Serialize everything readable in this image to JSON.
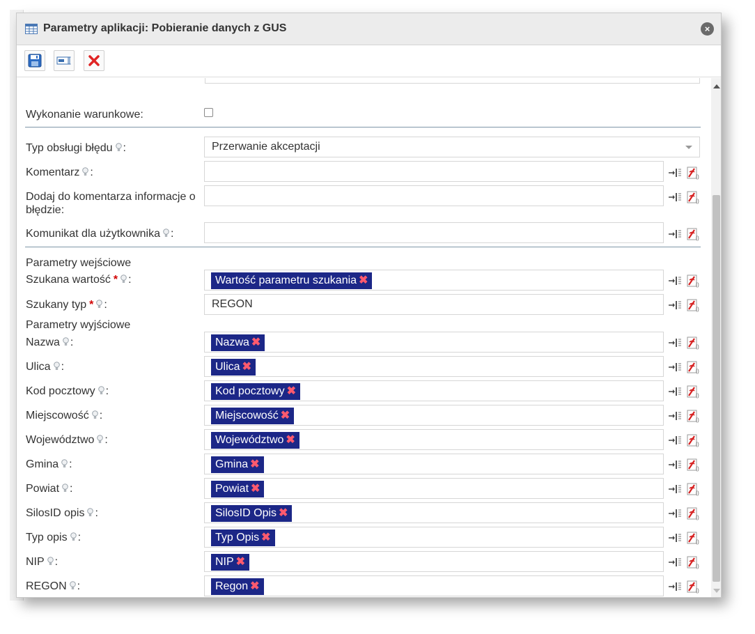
{
  "dialog": {
    "title": "Parametry aplikacji: Pobieranie danych z GUS"
  },
  "toolbar": {
    "buttons": [
      "save-icon",
      "field-icon",
      "delete-icon"
    ]
  },
  "form": {
    "conditional_label": "Wykonanie warunkowe:",
    "conditional_checked": false,
    "error_type_label": "Typ obsługi błędu",
    "error_type_value": "Przerwanie akceptacji",
    "comment_label": "Komentarz",
    "add_error_info_label": "Dodaj do komentarza informacje o błędzie:",
    "user_message_label": "Komunikat dla użytkownika",
    "input_params_header": "Parametry wejściowe",
    "search_value_label": "Szukana wartość",
    "search_value_tag": "Wartość parametru szukania",
    "search_type_label": "Szukany typ",
    "search_type_value": "REGON",
    "output_params_header": "Parametry wyjściowe",
    "outputs": [
      {
        "label": "Nazwa",
        "tag": "Nazwa"
      },
      {
        "label": "Ulica",
        "tag": "Ulica"
      },
      {
        "label": "Kod pocztowy",
        "tag": "Kod pocztowy"
      },
      {
        "label": "Miejscowość",
        "tag": "Miejscowość"
      },
      {
        "label": "Województwo",
        "tag": "Województwo"
      },
      {
        "label": "Gmina",
        "tag": "Gmina"
      },
      {
        "label": "Powiat",
        "tag": "Powiat"
      },
      {
        "label": "SilosID opis",
        "tag": "SilosID Opis"
      },
      {
        "label": "Typ opis",
        "tag": "Typ Opis"
      },
      {
        "label": "NIP",
        "tag": "NIP"
      },
      {
        "label": "REGON",
        "tag": "Regon"
      }
    ],
    "colon": ":",
    "required_mark": "*",
    "remove_mark": "✖"
  },
  "colors": {
    "tag_bg": "#1c2787",
    "tag_remove": "#ff5a6e",
    "required": "#d10000",
    "separator": "#7e96a8"
  }
}
